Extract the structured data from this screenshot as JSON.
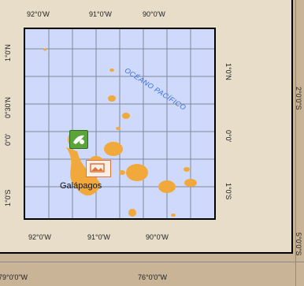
{
  "map": {
    "ocean_label": "OCÉANO PACÍFICO",
    "place_label": "Galápagos",
    "top_ticks": [
      "92°0'W",
      "91°0'W",
      "90°0'W"
    ],
    "bottom_ticks": [
      "92°0'W",
      "91°0'W",
      "90°0'W"
    ],
    "left_ticks": [
      "1°0'N",
      "0°30'N",
      "0°0'",
      "1°0'S"
    ],
    "right_ticks": [
      "1°0'N",
      "0°0'",
      "1°0'S"
    ]
  },
  "background_frame": {
    "bottom_ticks": [
      "79°0'0\"W",
      "76°0'0\"W"
    ],
    "right_ticks": [
      "2°0'0\"S",
      "5°0'0\"S"
    ]
  },
  "markers": [
    {
      "name": "green-site-icon",
      "color": "#5aa43a"
    },
    {
      "name": "photo-icon",
      "color": "#e0733a"
    }
  ],
  "colors": {
    "land": "#f2a93c",
    "water": "#cfd9fb",
    "background": "#c9b497"
  }
}
